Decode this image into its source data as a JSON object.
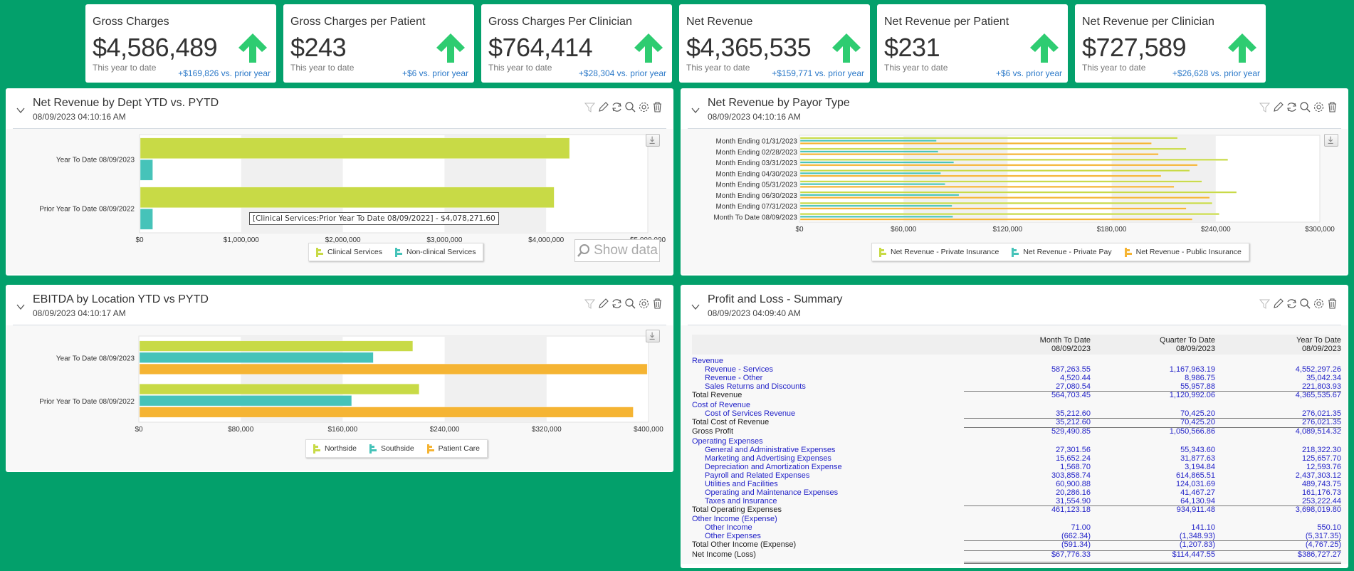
{
  "kpis": [
    {
      "title": "Gross Charges",
      "value": "$4,586,489",
      "subtitle": "This year to date",
      "delta": "+$169,826 vs. prior year",
      "trend_icon": "arrow-up-icon"
    },
    {
      "title": "Gross Charges per Patient",
      "value": "$243",
      "subtitle": "This year to date",
      "delta": "+$6 vs. prior year",
      "trend_icon": "arrow-up-icon"
    },
    {
      "title": "Gross Charges Per Clinician",
      "value": "$764,414",
      "subtitle": "This year to date",
      "delta": "+$28,304 vs. prior year",
      "trend_icon": "arrow-up-icon"
    },
    {
      "title": "Net Revenue",
      "value": "$4,365,535",
      "subtitle": "This year to date",
      "delta": "+$159,771 vs. prior year",
      "trend_icon": "arrow-up-icon"
    },
    {
      "title": "Net Revenue per Patient",
      "value": "$231",
      "subtitle": "This year to date",
      "delta": "+$6 vs. prior year",
      "trend_icon": "arrow-up-icon"
    },
    {
      "title": "Net Revenue per Clinician",
      "value": "$727,589",
      "subtitle": "This year to date",
      "delta": "+$26,628 vs. prior year",
      "trend_icon": "arrow-up-icon"
    }
  ],
  "colors": {
    "background": "#03a06b",
    "trend_up": "#2ecc71",
    "series_green": "#c8da46",
    "series_teal": "#46c3b9",
    "series_orange": "#f5b433",
    "link_blue": "#2323c8",
    "delta_blue": "#2a78c8"
  },
  "panel_tools": [
    "filter-icon",
    "edit-icon",
    "refresh-icon",
    "zoom-icon",
    "settings-icon",
    "delete-icon"
  ],
  "panels": {
    "dept": {
      "title": "Net Revenue by Dept YTD vs. PYTD",
      "timestamp": "08/09/2023 04:10:16 AM",
      "tooltip": "[Clinical Services:Prior Year To Date 08/09/2022] - $4,078,271.60",
      "show_data_label": "Show data"
    },
    "payor": {
      "title": "Net Revenue by Payor Type",
      "timestamp": "08/09/2023 04:10:16 AM"
    },
    "ebitda": {
      "title": "EBITDA by Location YTD vs PYTD",
      "timestamp": "08/09/2023 04:10:17 AM"
    },
    "pl": {
      "title": "Profit and Loss - Summary",
      "timestamp": "08/09/2023 04:09:40 AM",
      "columns": [
        {
          "line1": "Month To Date",
          "line2": "08/09/2023"
        },
        {
          "line1": "Quarter To Date",
          "line2": "08/09/2023"
        },
        {
          "line1": "Year To Date",
          "line2": "08/09/2023"
        }
      ],
      "rows": [
        {
          "label": "Revenue",
          "type": "section",
          "values": []
        },
        {
          "label": "Revenue - Services",
          "type": "item",
          "values": [
            "587,263.55",
            "1,167,963.19",
            "4,552,297.26"
          ]
        },
        {
          "label": "Revenue - Other",
          "type": "item",
          "values": [
            "4,520.44",
            "8,986.75",
            "35,042.34"
          ]
        },
        {
          "label": "Sales Returns and Discounts",
          "type": "item",
          "values": [
            "27,080.54",
            "55,957.88",
            "221,803.93"
          ]
        },
        {
          "label": "Total Revenue",
          "type": "total",
          "values": [
            "564,703.45",
            "1,120,992.06",
            "4,365,535.67"
          ]
        },
        {
          "label": "Cost of Revenue",
          "type": "section",
          "values": []
        },
        {
          "label": "Cost of Services Revenue",
          "type": "item",
          "values": [
            "35,212.60",
            "70,425.20",
            "276,021.35"
          ]
        },
        {
          "label": "Total Cost of Revenue",
          "type": "total",
          "values": [
            "35,212.60",
            "70,425.20",
            "276,021.35"
          ]
        },
        {
          "label": "Gross Profit",
          "type": "total",
          "values": [
            "529,490.85",
            "1,050,566.86",
            "4,089,514.32"
          ]
        },
        {
          "label": "Operating Expenses",
          "type": "section",
          "values": []
        },
        {
          "label": "General and Administrative Expenses",
          "type": "item",
          "values": [
            "27,301.56",
            "55,343.60",
            "218,322.30"
          ]
        },
        {
          "label": "Marketing and Advertising Expenses",
          "type": "item",
          "values": [
            "15,652.24",
            "31,877.63",
            "125,657.70"
          ]
        },
        {
          "label": "Depreciation and Amortization Expense",
          "type": "item",
          "values": [
            "1,568.70",
            "3,194.84",
            "12,593.76"
          ]
        },
        {
          "label": "Payroll and Related Expenses",
          "type": "item",
          "values": [
            "303,858.74",
            "614,865.51",
            "2,437,303.12"
          ]
        },
        {
          "label": "Utilities and Facilities",
          "type": "item",
          "values": [
            "60,900.88",
            "124,031.69",
            "489,743.75"
          ]
        },
        {
          "label": "Operating and Maintenance Expenses",
          "type": "item",
          "values": [
            "20,286.16",
            "41,467.27",
            "161,176.73"
          ]
        },
        {
          "label": "Taxes and Insurance",
          "type": "item",
          "values": [
            "31,554.90",
            "64,130.94",
            "253,222.44"
          ]
        },
        {
          "label": "Total Operating Expenses",
          "type": "total",
          "values": [
            "461,123.18",
            "934,911.48",
            "3,698,019.80"
          ]
        },
        {
          "label": "Other Income (Expense)",
          "type": "section",
          "values": []
        },
        {
          "label": "Other Income",
          "type": "item",
          "values": [
            "71.00",
            "141.10",
            "550.10"
          ]
        },
        {
          "label": "Other Expenses",
          "type": "item",
          "values": [
            "(662.34)",
            "(1,348.93)",
            "(5,317.35)"
          ]
        },
        {
          "label": "Total Other Income (Expense)",
          "type": "total",
          "values": [
            "(591.34)",
            "(1,207.83)",
            "(4,767.25)"
          ]
        },
        {
          "label": "Net Income (Loss)",
          "type": "net",
          "values": [
            "$67,776.33",
            "$114,447.55",
            "$386,727.27"
          ]
        }
      ]
    }
  },
  "chart_data": [
    {
      "id": "dept",
      "type": "bar",
      "orientation": "horizontal",
      "title": "Net Revenue by Dept YTD vs. PYTD",
      "categories": [
        "Year To Date 08/09/2023",
        "Prior Year To Date 08/09/2022"
      ],
      "series": [
        {
          "name": "Clinical Services",
          "color": "#c8da46",
          "values": [
            4230000,
            4078271.6
          ]
        },
        {
          "name": "Non-clinical Services",
          "color": "#46c3b9",
          "values": [
            130000,
            130000
          ]
        }
      ],
      "xlim": [
        0,
        5000000
      ],
      "xticks": [
        "$0",
        "$1,000,000",
        "$2,000,000",
        "$3,000,000",
        "$4,000,000",
        "$5,000,000"
      ],
      "xtick_values": [
        0,
        1000000,
        2000000,
        3000000,
        4000000,
        5000000
      ],
      "legend": "bottom-center",
      "grid": "alternating-bands"
    },
    {
      "id": "payor",
      "type": "bar",
      "orientation": "horizontal",
      "title": "Net Revenue by Payor Type",
      "categories": [
        "Month Ending 01/31/2023",
        "Month Ending 02/28/2023",
        "Month Ending 03/31/2023",
        "Month Ending 04/30/2023",
        "Month Ending 05/31/2023",
        "Month Ending 06/30/2023",
        "Month Ending 07/31/2023",
        "Month To Date 08/09/2023"
      ],
      "series": [
        {
          "name": "Net Revenue - Private Insurance",
          "color": "#c8da46",
          "values": [
            218000,
            223000,
            247000,
            225000,
            232000,
            252000,
            238000,
            242000
          ]
        },
        {
          "name": "Net Revenue - Private Pay",
          "color": "#46c3b9",
          "values": [
            79000,
            80000,
            89000,
            81500,
            84000,
            92000,
            88000,
            88500
          ]
        },
        {
          "name": "Net Revenue - Public Insurance",
          "color": "#f5b433",
          "values": [
            203000,
            207000,
            229500,
            208500,
            216000,
            236500,
            223000,
            226500
          ]
        }
      ],
      "xlim": [
        0,
        300000
      ],
      "xticks": [
        "$0",
        "$60,000",
        "$120,000",
        "$180,000",
        "$240,000",
        "$300,000"
      ],
      "xtick_values": [
        0,
        60000,
        120000,
        180000,
        240000,
        300000
      ],
      "legend": "bottom-center",
      "grid": "alternating-bands"
    },
    {
      "id": "ebitda",
      "type": "bar",
      "orientation": "horizontal",
      "title": "EBITDA by Location YTD vs PYTD",
      "categories": [
        "Year To Date 08/09/2023",
        "Prior Year To Date 08/09/2022"
      ],
      "series": [
        {
          "name": "Northside",
          "color": "#c8da46",
          "values": [
            215000,
            220000
          ]
        },
        {
          "name": "Southside",
          "color": "#46c3b9",
          "values": [
            184000,
            167000
          ]
        },
        {
          "name": "Patient Care",
          "color": "#f5b433",
          "values": [
            399000,
            388000
          ]
        }
      ],
      "xlim": [
        0,
        400000
      ],
      "xticks": [
        "$0",
        "$80,000",
        "$160,000",
        "$240,000",
        "$320,000",
        "$400,000"
      ],
      "xtick_values": [
        0,
        80000,
        160000,
        240000,
        320000,
        400000
      ],
      "legend": "bottom-center",
      "grid": "alternating-bands"
    }
  ]
}
